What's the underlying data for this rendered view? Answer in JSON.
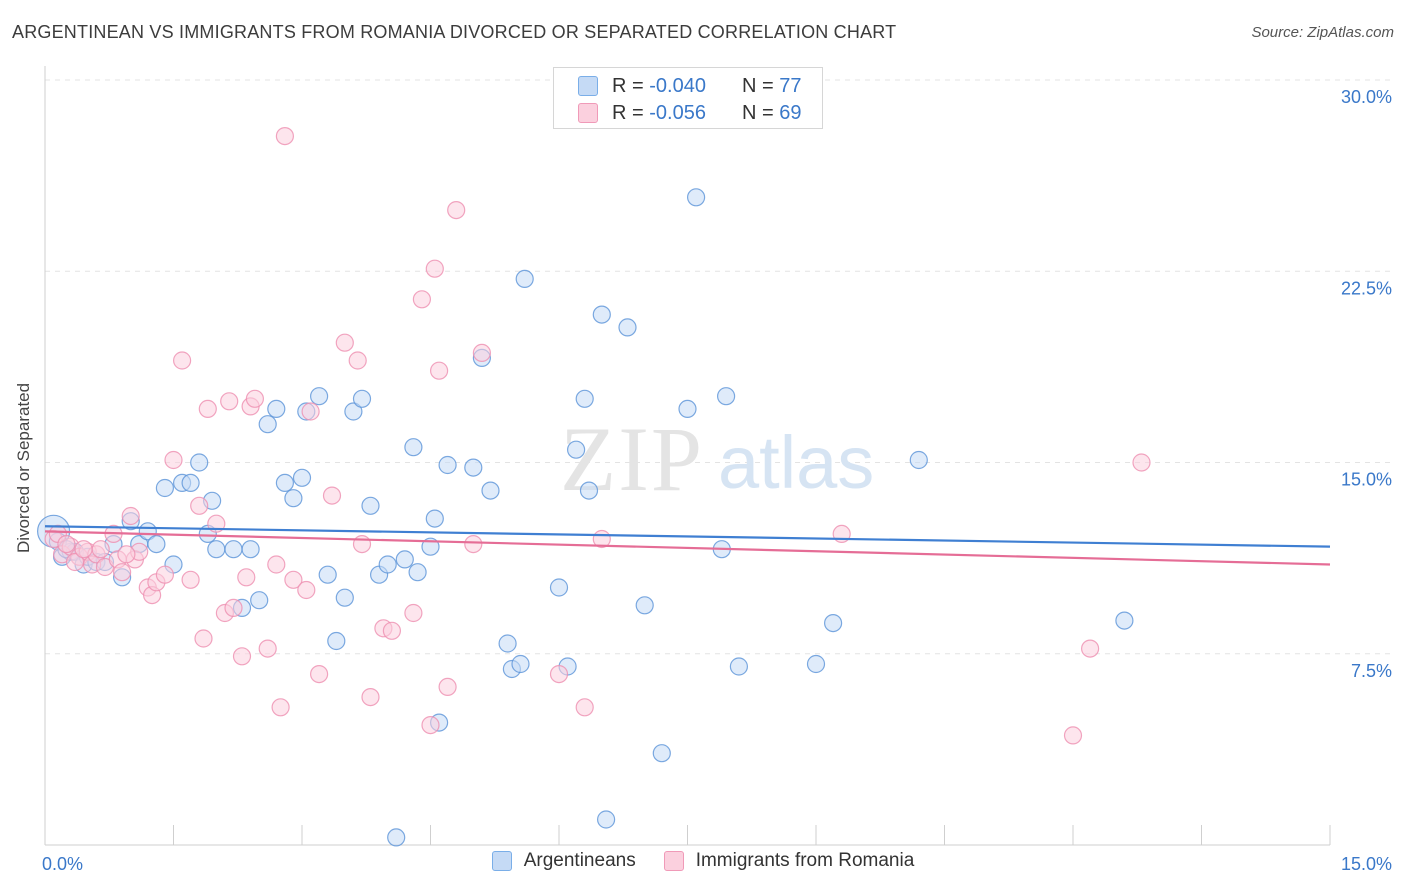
{
  "title": "ARGENTINEAN VS IMMIGRANTS FROM ROMANIA DIVORCED OR SEPARATED CORRELATION CHART",
  "source": "Source: ZipAtlas.com",
  "watermark": {
    "zip": "ZIP",
    "atlas": "atlas"
  },
  "stats": [
    {
      "r_label": "R =",
      "r_value": "-0.040",
      "n_label": "N =",
      "n_value": "77",
      "color": "#7aaee8",
      "fill": "#c5daf5"
    },
    {
      "r_label": "R =",
      "r_value": "-0.056",
      "n_label": "N =",
      "n_value": "69",
      "color": "#f09ab8",
      "fill": "#fbd0de"
    }
  ],
  "legend": [
    {
      "label": "Argentineans"
    },
    {
      "label": "Immigrants from Romania"
    }
  ],
  "chart_data": {
    "type": "scatter",
    "title": "ARGENTINEAN VS IMMIGRANTS FROM ROMANIA DIVORCED OR SEPARATED CORRELATION CHART",
    "xlabel": "",
    "ylabel": "Divorced or Separated",
    "xlim": [
      0,
      15
    ],
    "ylim": [
      0,
      30
    ],
    "x_tick_labels": [
      "0.0%",
      "15.0%"
    ],
    "y_ticks": [
      7.5,
      15.0,
      22.5,
      30.0
    ],
    "y_tick_labels": [
      "7.5%",
      "15.0%",
      "22.5%",
      "30.0%"
    ],
    "grid": true,
    "series": [
      {
        "name": "Argentineans",
        "color": "#5b93d8",
        "fill": "#c5daf5",
        "trend": {
          "x": [
            0,
            15
          ],
          "y": [
            12.5,
            11.7
          ],
          "color": "#3f7fd2"
        },
        "points": [
          [
            0.1,
            12.3
          ],
          [
            0.2,
            11.3
          ],
          [
            0.3,
            11.5
          ],
          [
            0.35,
            11.5
          ],
          [
            0.45,
            11.0
          ],
          [
            0.5,
            11.3
          ],
          [
            0.6,
            11.1
          ],
          [
            0.8,
            11.8
          ],
          [
            0.9,
            10.5
          ],
          [
            1.0,
            12.7
          ],
          [
            1.1,
            11.8
          ],
          [
            1.2,
            12.3
          ],
          [
            1.3,
            11.8
          ],
          [
            1.5,
            11.0
          ],
          [
            1.4,
            14.0
          ],
          [
            1.6,
            14.2
          ],
          [
            1.7,
            14.2
          ],
          [
            1.8,
            15.0
          ],
          [
            1.9,
            12.2
          ],
          [
            1.95,
            13.5
          ],
          [
            2.0,
            11.6
          ],
          [
            2.2,
            11.6
          ],
          [
            2.3,
            9.3
          ],
          [
            2.4,
            11.6
          ],
          [
            2.5,
            9.6
          ],
          [
            2.6,
            16.5
          ],
          [
            2.7,
            17.1
          ],
          [
            2.8,
            14.2
          ],
          [
            2.9,
            13.6
          ],
          [
            3.0,
            14.4
          ],
          [
            3.05,
            17.0
          ],
          [
            3.2,
            17.6
          ],
          [
            3.3,
            10.6
          ],
          [
            3.4,
            8.0
          ],
          [
            3.5,
            9.7
          ],
          [
            3.6,
            17.0
          ],
          [
            3.7,
            17.5
          ],
          [
            3.8,
            13.3
          ],
          [
            3.9,
            10.6
          ],
          [
            4.0,
            11.0
          ],
          [
            4.1,
            0.3
          ],
          [
            4.2,
            11.2
          ],
          [
            4.3,
            15.6
          ],
          [
            4.35,
            10.7
          ],
          [
            4.5,
            11.7
          ],
          [
            4.55,
            12.8
          ],
          [
            4.6,
            4.8
          ],
          [
            4.7,
            14.9
          ],
          [
            5.0,
            14.8
          ],
          [
            5.1,
            19.1
          ],
          [
            5.2,
            13.9
          ],
          [
            5.4,
            7.9
          ],
          [
            5.45,
            6.9
          ],
          [
            5.55,
            7.1
          ],
          [
            5.6,
            22.2
          ],
          [
            6.0,
            10.1
          ],
          [
            6.1,
            7.0
          ],
          [
            6.2,
            15.5
          ],
          [
            6.3,
            17.5
          ],
          [
            6.35,
            13.9
          ],
          [
            6.5,
            20.8
          ],
          [
            6.55,
            1.0
          ],
          [
            6.8,
            20.3
          ],
          [
            7.0,
            9.4
          ],
          [
            7.2,
            3.6
          ],
          [
            7.5,
            17.1
          ],
          [
            7.6,
            25.4
          ],
          [
            7.9,
            11.6
          ],
          [
            7.95,
            17.6
          ],
          [
            8.1,
            7.0
          ],
          [
            9.0,
            7.1
          ],
          [
            9.2,
            8.7
          ],
          [
            10.2,
            15.1
          ],
          [
            12.6,
            8.8
          ],
          [
            0.15,
            11.9
          ],
          [
            0.25,
            11.6
          ],
          [
            0.7,
            11.1
          ]
        ]
      },
      {
        "name": "Immigrants from Romania",
        "color": "#ee8fb0",
        "fill": "#fbd0de",
        "trend": {
          "x": [
            0,
            15
          ],
          "y": [
            12.3,
            11.0
          ],
          "color": "#e56d96"
        },
        "points": [
          [
            0.1,
            12.0
          ],
          [
            0.2,
            11.4
          ],
          [
            0.3,
            11.7
          ],
          [
            0.4,
            11.3
          ],
          [
            0.5,
            11.5
          ],
          [
            0.55,
            11.0
          ],
          [
            0.6,
            11.4
          ],
          [
            0.7,
            10.9
          ],
          [
            0.8,
            12.2
          ],
          [
            0.85,
            11.2
          ],
          [
            0.9,
            10.7
          ],
          [
            1.0,
            12.9
          ],
          [
            1.05,
            11.2
          ],
          [
            1.1,
            11.5
          ],
          [
            1.2,
            10.1
          ],
          [
            1.25,
            9.8
          ],
          [
            1.3,
            10.3
          ],
          [
            1.4,
            10.6
          ],
          [
            1.5,
            15.1
          ],
          [
            1.6,
            19.0
          ],
          [
            1.7,
            10.4
          ],
          [
            1.8,
            13.3
          ],
          [
            1.85,
            8.1
          ],
          [
            1.9,
            17.1
          ],
          [
            2.0,
            12.6
          ],
          [
            2.1,
            9.1
          ],
          [
            2.15,
            17.4
          ],
          [
            2.2,
            9.3
          ],
          [
            2.3,
            7.4
          ],
          [
            2.35,
            10.5
          ],
          [
            2.4,
            17.2
          ],
          [
            2.45,
            17.5
          ],
          [
            2.6,
            7.7
          ],
          [
            2.7,
            11.0
          ],
          [
            2.75,
            5.4
          ],
          [
            2.8,
            27.8
          ],
          [
            2.9,
            10.4
          ],
          [
            3.05,
            10.0
          ],
          [
            3.1,
            17.0
          ],
          [
            3.2,
            6.7
          ],
          [
            3.35,
            13.7
          ],
          [
            3.5,
            19.7
          ],
          [
            3.65,
            19.0
          ],
          [
            3.7,
            11.8
          ],
          [
            3.8,
            5.8
          ],
          [
            3.95,
            8.5
          ],
          [
            4.05,
            8.4
          ],
          [
            4.3,
            9.1
          ],
          [
            4.4,
            21.4
          ],
          [
            4.5,
            4.7
          ],
          [
            4.55,
            22.6
          ],
          [
            4.6,
            18.6
          ],
          [
            4.7,
            6.2
          ],
          [
            4.8,
            24.9
          ],
          [
            5.0,
            11.8
          ],
          [
            5.1,
            19.3
          ],
          [
            6.0,
            6.7
          ],
          [
            6.3,
            5.4
          ],
          [
            6.5,
            12.0
          ],
          [
            9.3,
            12.2
          ],
          [
            12.0,
            4.3
          ],
          [
            12.2,
            7.7
          ],
          [
            12.8,
            15.0
          ],
          [
            0.15,
            12.2
          ],
          [
            0.25,
            11.8
          ],
          [
            0.35,
            11.1
          ],
          [
            0.45,
            11.6
          ],
          [
            0.65,
            11.6
          ],
          [
            0.95,
            11.4
          ]
        ]
      }
    ]
  }
}
